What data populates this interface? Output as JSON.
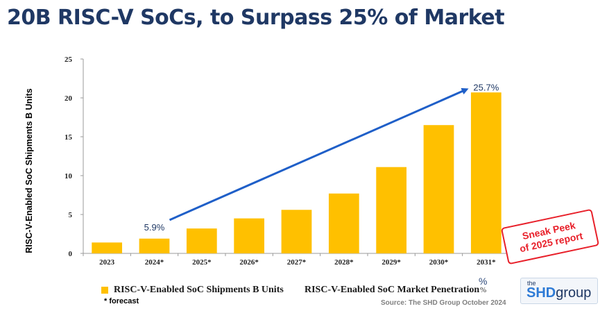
{
  "title": "20B RISC-V SoCs, to Surpass 25% of Market",
  "colors": {
    "bar": "#FFC000",
    "arrow": "#1F5FC8",
    "title": "#1F3864",
    "stamp": "#E8202A"
  },
  "chart_data": {
    "type": "bar",
    "categories": [
      "2023",
      "2024*",
      "2025*",
      "2026*",
      "2027*",
      "2028*",
      "2029*",
      "2030*",
      "2031*"
    ],
    "series": [
      {
        "name": "RISC-V-Enabled SoC Shipments B Units",
        "values": [
          1.4,
          1.9,
          3.2,
          4.5,
          5.6,
          7.7,
          11.1,
          16.5,
          20.7
        ]
      }
    ],
    "ylabel": "RISC-V-Enabled SoC Shipments B Units",
    "ylim": [
      0,
      25
    ],
    "yticks": [
      0,
      5,
      10,
      15,
      20,
      25
    ],
    "grid": false,
    "legend_position": "bottom",
    "penetration_series": {
      "name": "RISC-V-Enabled SoC Market Penetration",
      "unit": "%",
      "points": [
        {
          "category": "2024*",
          "label": "5.9%"
        },
        {
          "category": "2031*",
          "label": "25.7%"
        }
      ]
    }
  },
  "legend": {
    "shipments": "RISC-V-Enabled SoC Shipments B Units",
    "penetration": "RISC-V-Enabled SoC Market Penetration",
    "pct_symbol": "%",
    "pct_symbol_small": "%"
  },
  "footnote": "* forecast",
  "source": "Source: The SHD Group October 2024",
  "stamp": {
    "line1": "Sneak Peek",
    "line2": "of 2025 report"
  },
  "logo": {
    "the": "the",
    "shd": "SHD",
    "group": "group"
  }
}
